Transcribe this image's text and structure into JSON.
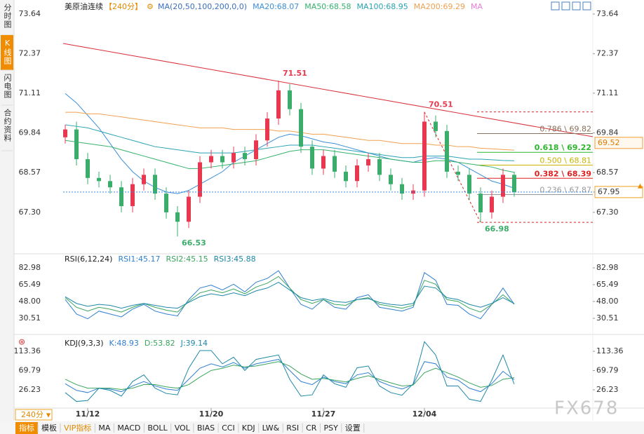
{
  "sidebar": {
    "tabs": [
      "分时图",
      "K线图",
      "闪电图",
      "合约资料"
    ]
  },
  "toolbar": {
    "interval": "240分",
    "items": [
      "指标",
      "模板",
      "VIP指标",
      "MA",
      "MACD",
      "BOLL",
      "VOL",
      "BIAS",
      "CCI",
      "KDJ",
      "LW&",
      "RSI",
      "CR",
      "PSY",
      "设置"
    ]
  },
  "watermark": "FX678",
  "chart_data": [
    {
      "type": "candlestick",
      "title": "美原油连续",
      "interval": "【240分】",
      "indicator": "MA(20,50,100,200,0,0)",
      "categories": [
        null,
        null,
        "11/12",
        null,
        null,
        null,
        null,
        null,
        null,
        null,
        null,
        null,
        null,
        "11/20",
        null,
        null,
        null,
        null,
        null,
        null,
        null,
        null,
        null,
        "11/27",
        null,
        null,
        null,
        null,
        null,
        null,
        null,
        null,
        "12/04",
        null,
        null,
        null,
        null,
        null,
        null,
        null,
        null
      ],
      "open": [
        69.7,
        69.95,
        69.0,
        68.4,
        68.3,
        68.1,
        67.5,
        68.2,
        68.5,
        67.9,
        67.3,
        67.0,
        67.8,
        68.9,
        69.1,
        68.9,
        69.2,
        69.0,
        69.6,
        70.3,
        71.2,
        70.6,
        69.4,
        68.7,
        69.1,
        68.6,
        68.3,
        68.8,
        69.0,
        68.5,
        68.2,
        67.9,
        68.0,
        70.2,
        69.9,
        68.6,
        68.5,
        67.9,
        67.3,
        67.8,
        68.5
      ],
      "high": [
        70.1,
        70.2,
        69.2,
        68.6,
        68.5,
        68.3,
        68.4,
        68.7,
        68.7,
        68.1,
        67.5,
        68.0,
        69.1,
        69.3,
        69.3,
        69.4,
        69.4,
        69.8,
        70.5,
        71.51,
        71.4,
        70.8,
        69.6,
        69.3,
        69.3,
        68.8,
        69.0,
        69.2,
        69.2,
        68.7,
        68.4,
        68.2,
        70.51,
        70.4,
        70.1,
        68.8,
        68.7,
        68.1,
        68.0,
        68.7,
        68.6
      ],
      "low": [
        69.5,
        68.8,
        68.2,
        68.1,
        67.9,
        67.3,
        67.3,
        68.0,
        67.7,
        67.1,
        66.53,
        66.8,
        67.6,
        68.7,
        68.7,
        68.7,
        68.8,
        68.8,
        69.4,
        70.1,
        70.4,
        69.2,
        68.5,
        68.5,
        68.4,
        68.1,
        68.1,
        68.6,
        68.3,
        68.0,
        67.7,
        67.7,
        67.8,
        69.7,
        68.4,
        68.3,
        67.7,
        66.98,
        67.1,
        67.6,
        67.8
      ],
      "close": [
        69.95,
        69.0,
        68.4,
        68.3,
        68.1,
        67.5,
        68.2,
        68.5,
        67.9,
        67.3,
        67.0,
        67.8,
        68.9,
        69.1,
        68.9,
        69.2,
        69.0,
        69.6,
        70.3,
        71.2,
        70.6,
        69.4,
        68.7,
        69.1,
        68.6,
        68.3,
        68.8,
        69.0,
        68.5,
        68.2,
        67.9,
        68.0,
        70.2,
        69.9,
        68.6,
        68.5,
        67.9,
        67.3,
        67.8,
        68.5,
        67.95
      ],
      "up_color": "#e8384f",
      "down_color": "#3aad6a",
      "series": [
        {
          "name": "MA20",
          "label": "MA20:68.07",
          "color": "#3b8fd9",
          "values": [
            71.1,
            70.8,
            70.4,
            70.0,
            69.5,
            69.0,
            68.6,
            68.3,
            68.1,
            67.95,
            67.9,
            68.0,
            68.2,
            68.4,
            68.6,
            68.9,
            69.1,
            69.3,
            69.5,
            69.7,
            69.8,
            69.75,
            69.65,
            69.55,
            69.5,
            69.4,
            69.3,
            69.2,
            69.1,
            69.0,
            68.95,
            68.9,
            69.0,
            69.05,
            69.0,
            68.9,
            68.7,
            68.5,
            68.3,
            68.2,
            68.07
          ]
        },
        {
          "name": "MA50",
          "label": "MA50:68.58",
          "color": "#35b26b",
          "values": [
            69.6,
            69.55,
            69.5,
            69.45,
            69.4,
            69.3,
            69.2,
            69.1,
            69.0,
            68.9,
            68.8,
            68.7,
            68.7,
            68.75,
            68.8,
            68.85,
            68.9,
            68.95,
            69.05,
            69.15,
            69.25,
            69.3,
            69.3,
            69.3,
            69.25,
            69.2,
            69.15,
            69.1,
            69.05,
            69.0,
            68.95,
            68.9,
            68.9,
            68.95,
            68.95,
            68.9,
            68.85,
            68.8,
            68.75,
            68.65,
            68.58
          ]
        },
        {
          "name": "MA100",
          "label": "MA100:68.95",
          "color": "#2aa3b5",
          "values": [
            70.1,
            70.05,
            70.0,
            69.9,
            69.8,
            69.7,
            69.6,
            69.5,
            69.4,
            69.35,
            69.3,
            69.25,
            69.2,
            69.2,
            69.2,
            69.2,
            69.25,
            69.3,
            69.35,
            69.4,
            69.45,
            69.45,
            69.45,
            69.4,
            69.35,
            69.3,
            69.25,
            69.2,
            69.15,
            69.1,
            69.05,
            69.05,
            69.1,
            69.1,
            69.1,
            69.05,
            69.0,
            69.0,
            68.98,
            68.96,
            68.95
          ]
        },
        {
          "name": "MA200",
          "label": "MA200:69.29",
          "color": "#f0a050",
          "values": [
            70.5,
            70.5,
            70.45,
            70.45,
            70.4,
            70.35,
            70.3,
            70.25,
            70.2,
            70.15,
            70.1,
            70.05,
            70.0,
            70.0,
            70.0,
            69.95,
            69.95,
            69.95,
            69.95,
            69.9,
            69.9,
            69.85,
            69.8,
            69.8,
            69.75,
            69.7,
            69.65,
            69.6,
            69.6,
            69.55,
            69.5,
            69.5,
            69.5,
            69.45,
            69.45,
            69.4,
            69.4,
            69.35,
            69.33,
            69.31,
            69.29
          ]
        }
      ],
      "extra_legend": {
        "label": "MA",
        "color": "#e67ed8"
      },
      "ylim": [
        66.02,
        73.64
      ],
      "yticks": [
        73.64,
        72.37,
        71.11,
        69.84,
        {
          "value": 68.57,
          "label": "68.57"
        },
        {
          "value": 67.3,
          "label": "67.30"
        }
      ],
      "tags": [
        {
          "value": 69.52,
          "color": "#f39c32"
        }
      ],
      "fib": [
        {
          "label": "0.786 \\ 69.82",
          "value": 69.82,
          "color": "#8a6f5a"
        },
        {
          "label": "0.618 \\ 69.22",
          "value": 69.22,
          "color": "#2db52d"
        },
        {
          "label": "0.500 \\ 68.81",
          "value": 68.81,
          "color": "#c9b400"
        },
        {
          "label": "0.382 \\ 68.39",
          "value": 68.39,
          "color": "#e02020"
        },
        {
          "label": "0.236 \\ 67.87",
          "value": 67.87,
          "color": "#999999"
        }
      ]
    },
    {
      "type": "line",
      "title": "RSI(6,12,24)",
      "series": [
        {
          "name": "RSI1",
          "label": "RSI1:45.17",
          "color": "#2f7fd0",
          "values": [
            50,
            35,
            30,
            38,
            35,
            32,
            40,
            45,
            38,
            35,
            33,
            50,
            62,
            65,
            60,
            66,
            58,
            68,
            72,
            80,
            62,
            45,
            40,
            50,
            42,
            40,
            52,
            55,
            42,
            40,
            38,
            42,
            78,
            70,
            45,
            44,
            35,
            30,
            45,
            62,
            45.17
          ]
        },
        {
          "name": "RSI2",
          "label": "RSI2:45.15",
          "color": "#3aa55d",
          "values": [
            52,
            42,
            38,
            42,
            40,
            37,
            42,
            46,
            42,
            39,
            37,
            48,
            57,
            60,
            57,
            61,
            56,
            63,
            67,
            74,
            62,
            50,
            46,
            50,
            45,
            44,
            50,
            52,
            45,
            43,
            41,
            44,
            70,
            66,
            50,
            48,
            41,
            37,
            45,
            55,
            45.15
          ]
        },
        {
          "name": "RSI3",
          "label": "RSI3:45.88",
          "color": "#1e88a8",
          "values": [
            53,
            46,
            43,
            45,
            44,
            41,
            44,
            46,
            44,
            42,
            41,
            47,
            53,
            56,
            54,
            57,
            54,
            59,
            62,
            68,
            60,
            52,
            49,
            51,
            48,
            47,
            50,
            51,
            47,
            45,
            44,
            46,
            64,
            62,
            52,
            50,
            45,
            42,
            46,
            52,
            45.88
          ]
        }
      ],
      "ylim": [
        15.2,
        95.37
      ],
      "yticks": [
        82.98,
        65.49,
        {
          "value": 48,
          "label": "48.00"
        },
        30.51
      ]
    },
    {
      "type": "line",
      "title": "KDJ(9,3,3)",
      "series": [
        {
          "name": "K",
          "label": "K:48.93",
          "color": "#2f7fd0",
          "values": [
            40,
            25,
            20,
            30,
            28,
            22,
            35,
            45,
            35,
            28,
            25,
            50,
            75,
            85,
            78,
            88,
            75,
            85,
            90,
            95,
            70,
            45,
            38,
            55,
            45,
            40,
            60,
            65,
            45,
            35,
            28,
            38,
            90,
            85,
            55,
            48,
            30,
            22,
            40,
            68,
            48.93
          ]
        },
        {
          "name": "D",
          "label": "D:53.82",
          "color": "#3aa55d",
          "values": [
            50,
            38,
            30,
            30,
            30,
            27,
            30,
            38,
            38,
            33,
            30,
            38,
            55,
            70,
            75,
            82,
            78,
            80,
            85,
            90,
            80,
            62,
            50,
            52,
            48,
            44,
            52,
            58,
            50,
            42,
            35,
            37,
            65,
            75,
            65,
            55,
            42,
            32,
            36,
            50,
            53.82
          ]
        },
        {
          "name": "J",
          "label": "J:39.14",
          "color": "#1e88a8",
          "values": [
            20,
            0,
            2,
            30,
            25,
            12,
            45,
            60,
            30,
            18,
            15,
            75,
            115,
            115,
            85,
            100,
            70,
            95,
            100,
            105,
            50,
            12,
            15,
            60,
            40,
            32,
            76,
            80,
            35,
            20,
            14,
            40,
            135,
            105,
            35,
            35,
            5,
            0,
            48,
            105,
            39.14
          ]
        }
      ],
      "ylim": [
        -11.8,
        146.6
      ],
      "yticks": [
        113.36,
        69.79,
        26.23
      ]
    }
  ]
}
